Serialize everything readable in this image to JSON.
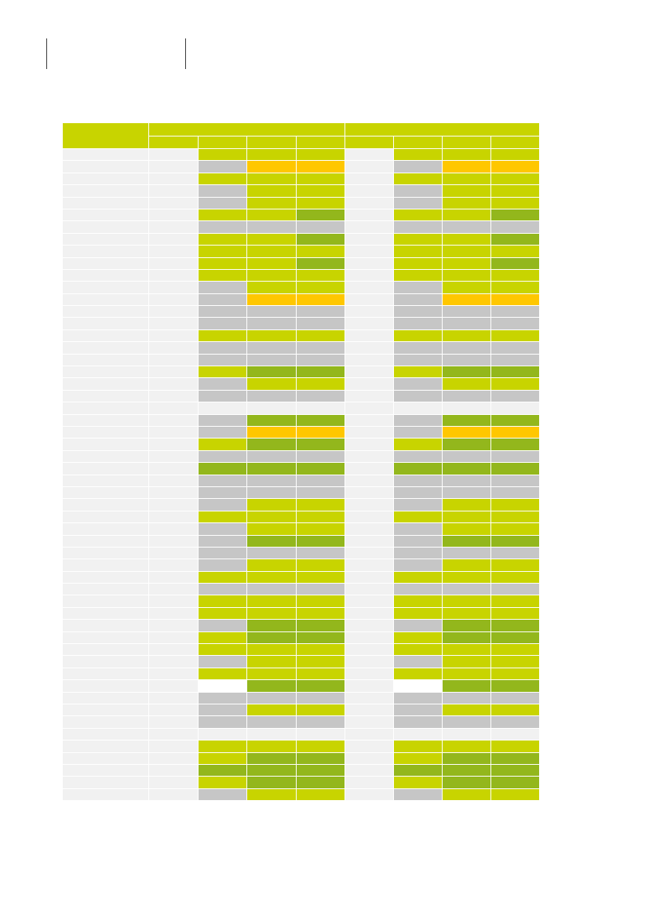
{
  "colors": {
    "L": "#c8d400",
    "G": "#93b71c",
    "O": "#ffc700",
    "Y": "#c6c6c6",
    "E": "#f1f1f1",
    "W": "#ffffff"
  },
  "rows": [
    [
      "L",
      "L",
      "L",
      "L",
      "L",
      "L"
    ],
    [
      "Y",
      "O",
      "O",
      "Y",
      "O",
      "O"
    ],
    [
      "L",
      "L",
      "L",
      "L",
      "L",
      "L"
    ],
    [
      "Y",
      "L",
      "L",
      "Y",
      "L",
      "L"
    ],
    [
      "Y",
      "L",
      "L",
      "Y",
      "L",
      "L"
    ],
    [
      "L",
      "L",
      "G",
      "L",
      "L",
      "G"
    ],
    [
      "Y",
      "Y",
      "Y",
      "Y",
      "Y",
      "Y"
    ],
    [
      "L",
      "L",
      "G",
      "L",
      "L",
      "G"
    ],
    [
      "L",
      "L",
      "L",
      "L",
      "L",
      "L"
    ],
    [
      "L",
      "L",
      "G",
      "L",
      "L",
      "G"
    ],
    [
      "L",
      "L",
      "L",
      "L",
      "L",
      "L"
    ],
    [
      "Y",
      "L",
      "L",
      "Y",
      "L",
      "L"
    ],
    [
      "Y",
      "O",
      "O",
      "Y",
      "O",
      "O"
    ],
    [
      "Y",
      "Y",
      "Y",
      "Y",
      "Y",
      "Y"
    ],
    [
      "Y",
      "Y",
      "Y",
      "Y",
      "Y",
      "Y"
    ],
    [
      "L",
      "L",
      "L",
      "L",
      "L",
      "L"
    ],
    [
      "Y",
      "Y",
      "Y",
      "Y",
      "Y",
      "Y"
    ],
    [
      "Y",
      "Y",
      "Y",
      "Y",
      "Y",
      "Y"
    ],
    [
      "L",
      "G",
      "G",
      "L",
      "G",
      "G"
    ],
    [
      "Y",
      "L",
      "L",
      "Y",
      "L",
      "L"
    ],
    [
      "Y",
      "Y",
      "Y",
      "Y",
      "Y",
      "Y"
    ],
    [
      "E",
      "E",
      "E",
      "E",
      "E",
      "E"
    ],
    [
      "Y",
      "G",
      "G",
      "Y",
      "G",
      "G"
    ],
    [
      "Y",
      "O",
      "O",
      "Y",
      "O",
      "O"
    ],
    [
      "L",
      "G",
      "G",
      "L",
      "G",
      "G"
    ],
    [
      "Y",
      "Y",
      "Y",
      "Y",
      "Y",
      "Y"
    ],
    [
      "G",
      "G",
      "G",
      "G",
      "G",
      "G"
    ],
    [
      "Y",
      "Y",
      "Y",
      "Y",
      "Y",
      "Y"
    ],
    [
      "Y",
      "Y",
      "Y",
      "Y",
      "Y",
      "Y"
    ],
    [
      "Y",
      "L",
      "L",
      "Y",
      "L",
      "L"
    ],
    [
      "L",
      "L",
      "L",
      "L",
      "L",
      "L"
    ],
    [
      "Y",
      "L",
      "L",
      "Y",
      "L",
      "L"
    ],
    [
      "Y",
      "G",
      "G",
      "Y",
      "G",
      "G"
    ],
    [
      "Y",
      "Y",
      "Y",
      "Y",
      "Y",
      "Y"
    ],
    [
      "Y",
      "L",
      "L",
      "Y",
      "L",
      "L"
    ],
    [
      "L",
      "L",
      "L",
      "L",
      "L",
      "L"
    ],
    [
      "Y",
      "Y",
      "Y",
      "Y",
      "Y",
      "Y"
    ],
    [
      "L",
      "L",
      "L",
      "L",
      "L",
      "L"
    ],
    [
      "L",
      "L",
      "L",
      "L",
      "L",
      "L"
    ],
    [
      "Y",
      "G",
      "G",
      "Y",
      "G",
      "G"
    ],
    [
      "L",
      "G",
      "G",
      "L",
      "G",
      "G"
    ],
    [
      "L",
      "L",
      "L",
      "L",
      "L",
      "L"
    ],
    [
      "Y",
      "L",
      "L",
      "Y",
      "L",
      "L"
    ],
    [
      "L",
      "L",
      "L",
      "L",
      "L",
      "L"
    ],
    [
      "W",
      "G",
      "G",
      "W",
      "G",
      "G"
    ],
    [
      "Y",
      "Y",
      "Y",
      "Y",
      "Y",
      "Y"
    ],
    [
      "Y",
      "L",
      "L",
      "Y",
      "L",
      "L"
    ],
    [
      "Y",
      "Y",
      "Y",
      "Y",
      "Y",
      "Y"
    ],
    [
      "E",
      "E",
      "E",
      "E",
      "E",
      "E"
    ],
    [
      "L",
      "L",
      "L",
      "L",
      "L",
      "L"
    ],
    [
      "L",
      "G",
      "G",
      "L",
      "G",
      "G"
    ],
    [
      "G",
      "G",
      "G",
      "G",
      "G",
      "G"
    ],
    [
      "L",
      "G",
      "G",
      "L",
      "G",
      "G"
    ],
    [
      "Y",
      "L",
      "L",
      "Y",
      "L",
      "L"
    ]
  ]
}
